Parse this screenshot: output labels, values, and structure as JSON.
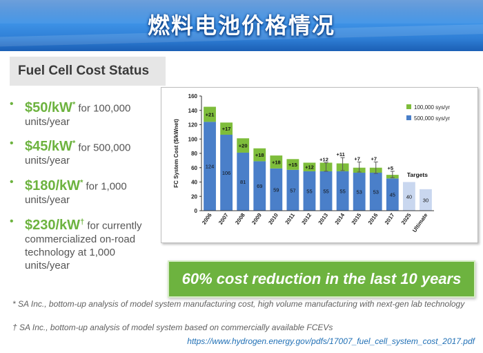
{
  "banner": {
    "title": "燃料电池价格情况"
  },
  "section": {
    "title": "Fuel Cell Cost Status"
  },
  "bullets": [
    {
      "price": "$50/kW",
      "mark": "*",
      "line1": "for 100,000",
      "line2": "units/year"
    },
    {
      "price": "$45/kW",
      "mark": "*",
      "line1": "for 500,000",
      "line2": "units/year"
    },
    {
      "price": "$180/kW",
      "mark": "*",
      "line1": "for 1,000",
      "line2": "units/year"
    },
    {
      "price": "$230/kW",
      "mark": "†",
      "line1": "for currently",
      "line2": "commercialized on-road technology at 1,000 units/year"
    }
  ],
  "callout": {
    "text": "60% cost reduction in the last 10 years"
  },
  "footnotes": {
    "f1": "* SA Inc., bottom-up analysis of model system manufacturing cost, high volume manufacturing with next-gen lab technology",
    "f2": "† SA Inc., bottom-up analysis of model system based on commercially available FCEVs"
  },
  "source_url": "https://www.hydrogen.energy.gov/pdfs/17007_fuel_cell_system_cost_2017.pdf",
  "colors": {
    "series_500k": "#4a7fc9",
    "series_100k": "#7ebd3b",
    "target_bar": "#c9d7ef",
    "accent_green": "#6db33f"
  },
  "chart_data": {
    "type": "bar",
    "stacked": true,
    "ylabel": "FC System Cost ($/kWnet)",
    "ylim": [
      0,
      160
    ],
    "yticks": [
      0,
      20,
      40,
      60,
      80,
      100,
      120,
      140,
      160
    ],
    "categories": [
      "2006",
      "2007",
      "2008",
      "2009",
      "2010",
      "2011",
      "2012",
      "2013",
      "2014",
      "2015",
      "2016",
      "2017",
      "2025",
      "Ultimate"
    ],
    "series": [
      {
        "name": "500,000 sys/yr",
        "values": [
          124,
          106,
          81,
          69,
          59,
          57,
          55,
          55,
          55,
          53,
          53,
          45,
          null,
          null
        ]
      },
      {
        "name": "100,000 sys/yr",
        "values": [
          21,
          17,
          20,
          18,
          18,
          15,
          12,
          12,
          11,
          7,
          7,
          5,
          null,
          null
        ]
      }
    ],
    "increment_labels": [
      "+21",
      "+17",
      "+20",
      "+18",
      "+18",
      "+15",
      "+12",
      "+12",
      "+11",
      "+7",
      "+7",
      "+5",
      "",
      ""
    ],
    "base_labels": [
      "124",
      "106",
      "81",
      "69",
      "59",
      "57",
      "55",
      "55",
      "55",
      "53",
      "53",
      "45",
      "40",
      "30"
    ],
    "targets": {
      "label": "Targets",
      "values": [
        40,
        30
      ]
    },
    "error_bars": [
      null,
      null,
      null,
      null,
      null,
      null,
      null,
      [
        55,
        67
      ],
      [
        56,
        74
      ],
      [
        54,
        68
      ],
      [
        52,
        68
      ],
      [
        46,
        55
      ],
      null,
      null
    ],
    "legend": {
      "position": "top-right"
    },
    "grid": false
  }
}
